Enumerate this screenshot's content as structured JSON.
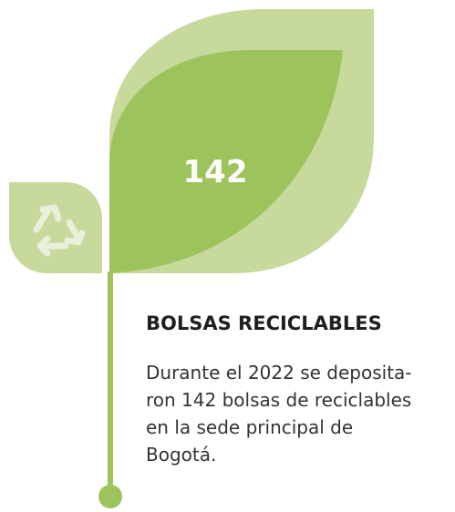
{
  "value": "142",
  "title": "BOLSAS RECICLABLES",
  "body": [
    "Durante el 2022 se deposita-",
    "ron 142 bolsas de reciclables",
    "en la sede principal de",
    "Bogotá."
  ]
}
